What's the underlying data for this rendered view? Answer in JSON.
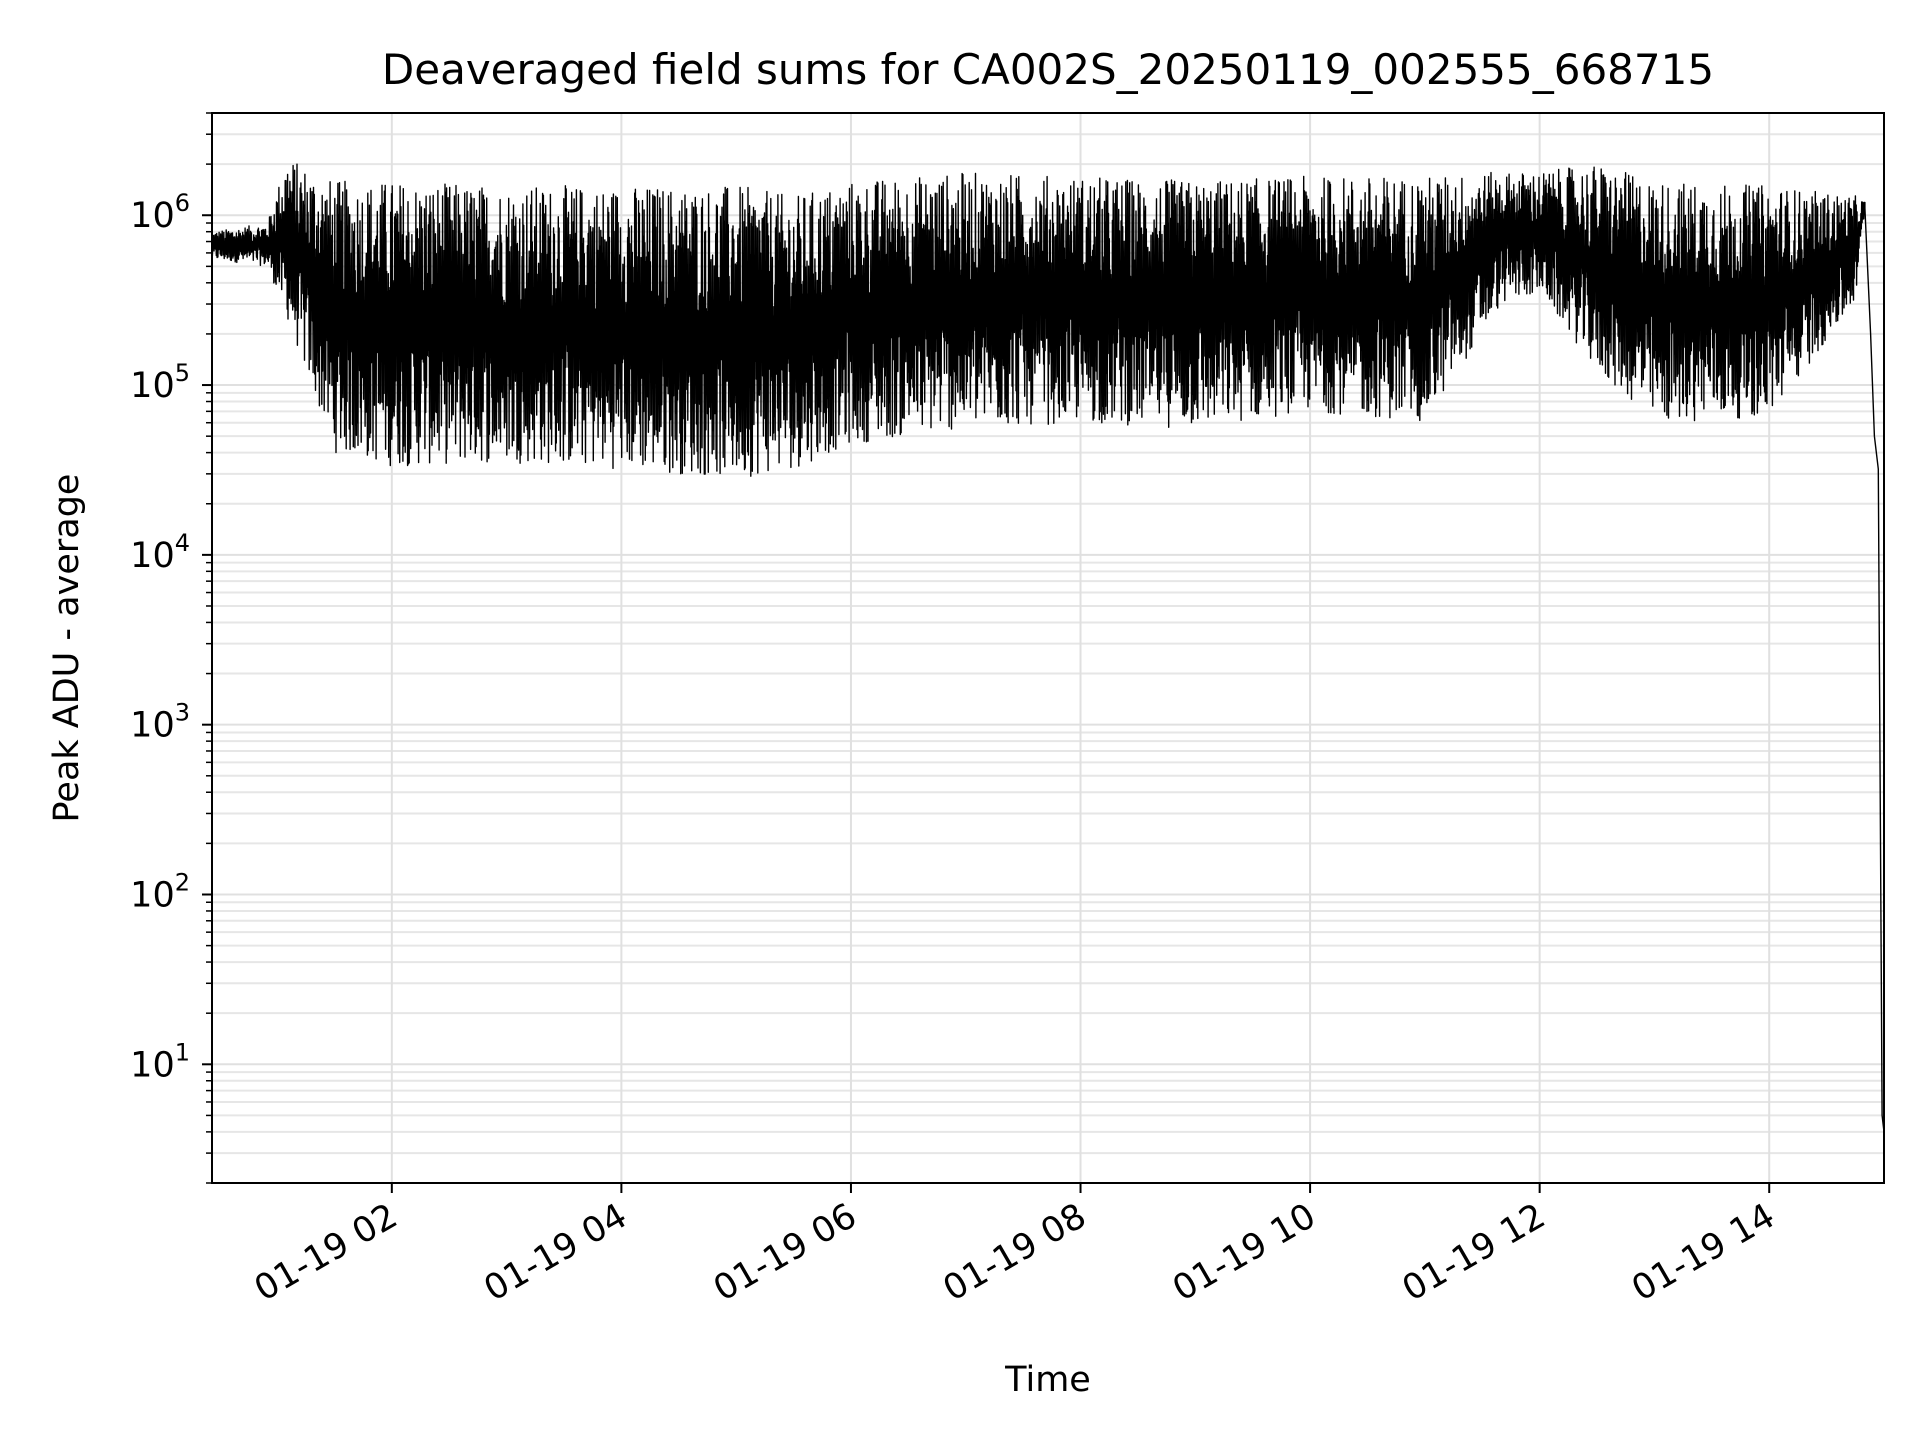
{
  "chart_data": {
    "type": "line",
    "title": "Deaveraged field sums for CA002S_20250119_002555_668715",
    "xlabel": "Time",
    "ylabel": "Peak ADU - average",
    "yscale": "log",
    "grid": true,
    "legend": "none",
    "xlim": [
      "2025-01-19 00:26",
      "2025-01-19 15:00"
    ],
    "ylim": [
      2,
      4000000
    ],
    "x_ticks": [
      {
        "value": "2025-01-19 02:00",
        "label": "01-19 02"
      },
      {
        "value": "2025-01-19 04:00",
        "label": "01-19 04"
      },
      {
        "value": "2025-01-19 06:00",
        "label": "01-19 06"
      },
      {
        "value": "2025-01-19 08:00",
        "label": "01-19 08"
      },
      {
        "value": "2025-01-19 10:00",
        "label": "01-19 10"
      },
      {
        "value": "2025-01-19 12:00",
        "label": "01-19 12"
      },
      {
        "value": "2025-01-19 14:00",
        "label": "01-19 14"
      }
    ],
    "y_ticks": [
      {
        "value": 10,
        "base": "10",
        "exp": "1"
      },
      {
        "value": 100,
        "base": "10",
        "exp": "2"
      },
      {
        "value": 1000,
        "base": "10",
        "exp": "3"
      },
      {
        "value": 10000,
        "base": "10",
        "exp": "4"
      },
      {
        "value": 100000,
        "base": "10",
        "exp": "5"
      },
      {
        "value": 1000000,
        "base": "10",
        "exp": "6"
      }
    ],
    "series": [
      {
        "color": "#000000",
        "upper_envelope": {
          "x": [
            "2025-01-19 00:26",
            "2025-01-19 00:55",
            "2025-01-19 01:05",
            "2025-01-19 01:30",
            "2025-01-19 02:00",
            "2025-01-19 03:00",
            "2025-01-19 04:00",
            "2025-01-19 05:00",
            "2025-01-19 05:30",
            "2025-01-19 06:00",
            "2025-01-19 07:00",
            "2025-01-19 08:00",
            "2025-01-19 09:00",
            "2025-01-19 10:00",
            "2025-01-19 11:00",
            "2025-01-19 11:40",
            "2025-01-19 12:00",
            "2025-01-19 12:30",
            "2025-01-19 13:00",
            "2025-01-19 14:00",
            "2025-01-19 14:45",
            "2025-01-19 14:50"
          ],
          "y": [
            800000,
            900000,
            2200000,
            1600000,
            1600000,
            1500000,
            1500000,
            1500000,
            1300000,
            1600000,
            1800000,
            1700000,
            1600000,
            1700000,
            1700000,
            1800000,
            1800000,
            2000000,
            1600000,
            1500000,
            1300000,
            1200000
          ]
        },
        "lower_envelope": {
          "x": [
            "2025-01-19 00:26",
            "2025-01-19 00:55",
            "2025-01-19 01:05",
            "2025-01-19 01:30",
            "2025-01-19 02:00",
            "2025-01-19 03:00",
            "2025-01-19 04:00",
            "2025-01-19 05:00",
            "2025-01-19 05:30",
            "2025-01-19 06:00",
            "2025-01-19 07:00",
            "2025-01-19 08:00",
            "2025-01-19 09:00",
            "2025-01-19 10:00",
            "2025-01-19 11:00",
            "2025-01-19 11:40",
            "2025-01-19 12:00",
            "2025-01-19 12:30",
            "2025-01-19 13:00",
            "2025-01-19 14:00",
            "2025-01-19 14:45",
            "2025-01-19 14:50"
          ],
          "y": [
            550000,
            500000,
            250000,
            40000,
            33000,
            35000,
            32000,
            28000,
            32000,
            45000,
            55000,
            60000,
            55000,
            70000,
            60000,
            300000,
            350000,
            120000,
            60000,
            65000,
            300000,
            1100000
          ]
        },
        "tail": {
          "x": [
            "2025-01-19 14:50",
            "2025-01-19 14:53",
            "2025-01-19 14:55",
            "2025-01-19 14:57",
            "2025-01-19 14:59",
            "2025-01-19 15:00"
          ],
          "y": [
            1100000,
            200000,
            50000,
            32000,
            5,
            4
          ]
        }
      }
    ]
  }
}
